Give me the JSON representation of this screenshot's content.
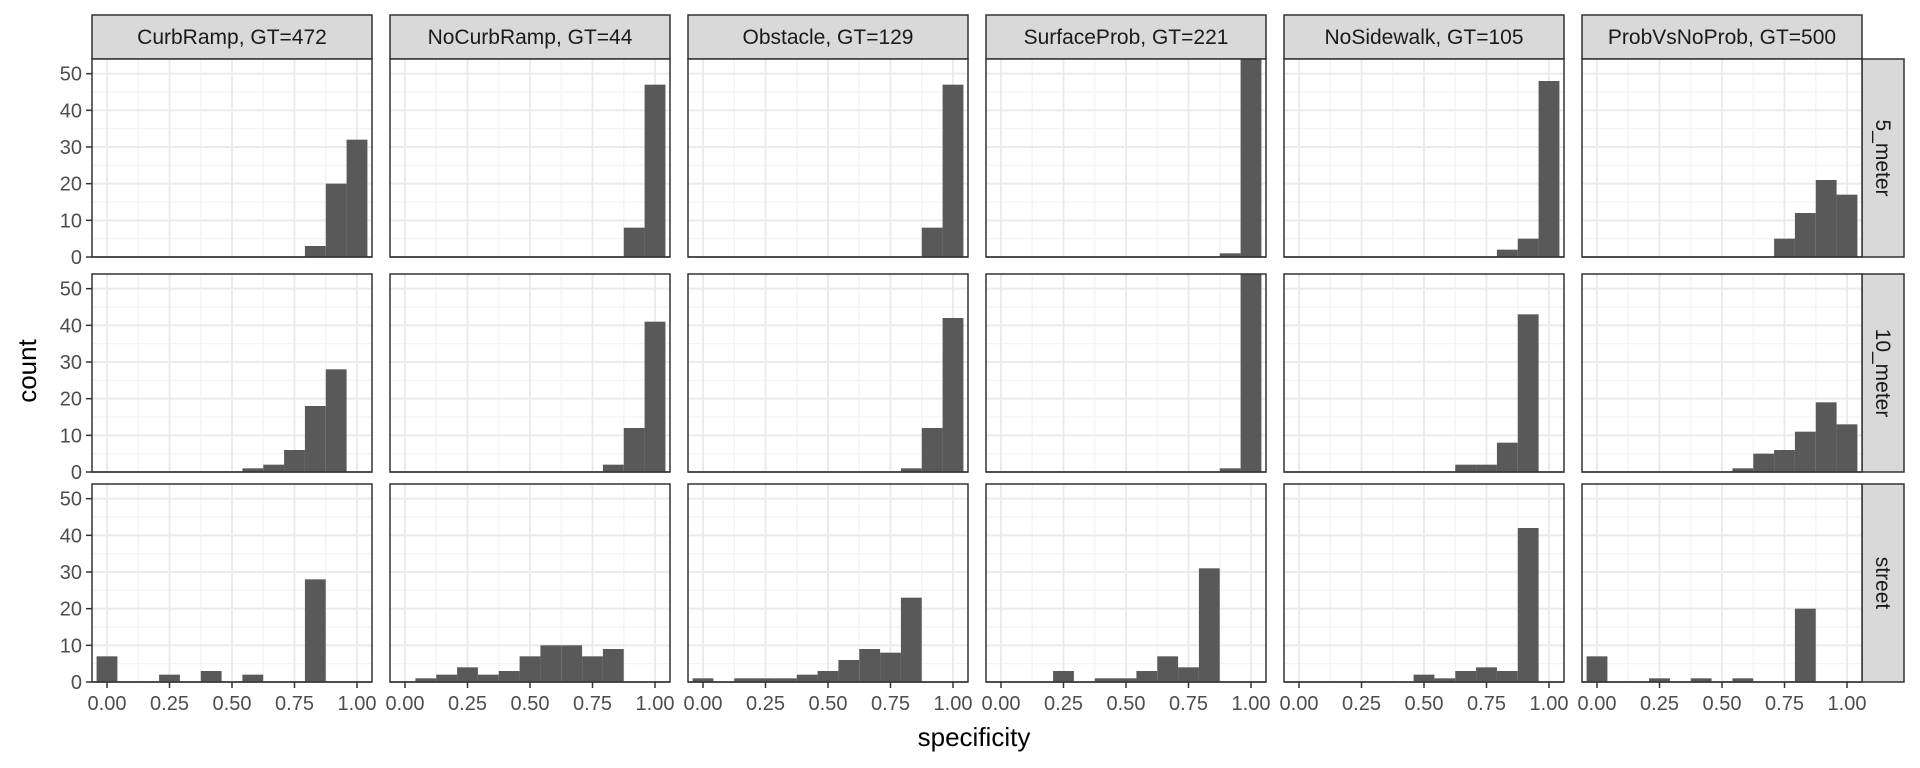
{
  "chart_data": {
    "type": "bar",
    "xlabel": "specificity",
    "ylabel": "count",
    "ylim": [
      0,
      54
    ],
    "xlim": [
      -0.06,
      1.06
    ],
    "bin_width": 0.0833,
    "x_ticks": [
      0.0,
      0.25,
      0.5,
      0.75,
      1.0
    ],
    "x_tick_labels": [
      "0.00",
      "0.25",
      "0.50",
      "0.75",
      "1.00"
    ],
    "y_ticks": [
      0,
      10,
      20,
      30,
      40,
      50
    ],
    "y_tick_labels": [
      "0",
      "10",
      "20",
      "30",
      "40",
      "50"
    ],
    "grid": true,
    "colors": {
      "bar": "#595959",
      "panel_border": "#333333",
      "grid_major": "#ebebeb",
      "grid_minor": "#f3f3f3",
      "strip_fill": "#d9d9d9"
    },
    "bin_centers": [
      0.0,
      0.0833,
      0.1667,
      0.25,
      0.3333,
      0.4167,
      0.5,
      0.5833,
      0.6667,
      0.75,
      0.8333,
      0.9167,
      1.0
    ],
    "columns": [
      "CurbRamp, GT=472",
      "NoCurbRamp, GT=44",
      "Obstacle, GT=129",
      "SurfaceProb, GT=221",
      "NoSidewalk, GT=105",
      "ProbVsNoProb, GT=500"
    ],
    "rows": [
      "5_meter",
      "10_meter",
      "street"
    ],
    "counts": [
      [
        [
          0,
          0,
          0,
          0,
          0,
          0,
          0,
          0,
          0,
          0,
          3,
          20,
          32
        ],
        [
          0,
          0,
          0,
          0,
          0,
          0,
          0,
          0,
          0,
          0,
          0,
          8,
          47
        ],
        [
          0,
          0,
          0,
          0,
          0,
          0,
          0,
          0,
          0,
          0,
          0,
          8,
          47
        ],
        [
          0,
          0,
          0,
          0,
          0,
          0,
          0,
          0,
          0,
          0,
          0,
          1,
          62
        ],
        [
          0,
          0,
          0,
          0,
          0,
          0,
          0,
          0,
          0,
          0,
          2,
          5,
          48
        ],
        [
          0,
          0,
          0,
          0,
          0,
          0,
          0,
          0,
          0,
          5,
          12,
          21,
          17
        ]
      ],
      [
        [
          0,
          0,
          0,
          0,
          0,
          0,
          0,
          1,
          2,
          6,
          18,
          28,
          0
        ],
        [
          0,
          0,
          0,
          0,
          0,
          0,
          0,
          0,
          0,
          0,
          2,
          12,
          41
        ],
        [
          0,
          0,
          0,
          0,
          0,
          0,
          0,
          0,
          0,
          0,
          1,
          12,
          42
        ],
        [
          0,
          0,
          0,
          0,
          0,
          0,
          0,
          0,
          0,
          0,
          0,
          1,
          62
        ],
        [
          0,
          0,
          0,
          0,
          0,
          0,
          0,
          0,
          2,
          2,
          8,
          43,
          0
        ],
        [
          0,
          0,
          0,
          0,
          0,
          0,
          0,
          1,
          5,
          6,
          11,
          19,
          13
        ]
      ],
      [
        [
          7,
          0,
          0,
          2,
          0,
          3,
          0,
          2,
          0,
          0,
          28,
          0,
          0
        ],
        [
          0,
          1,
          2,
          4,
          2,
          3,
          7,
          10,
          10,
          7,
          9,
          0,
          0
        ],
        [
          1,
          0,
          1,
          1,
          1,
          2,
          3,
          6,
          9,
          8,
          23,
          0,
          0
        ],
        [
          0,
          0,
          0,
          3,
          0,
          1,
          1,
          3,
          7,
          4,
          31,
          0,
          0
        ],
        [
          0,
          0,
          0,
          0,
          0,
          0,
          2,
          1,
          3,
          4,
          3,
          42,
          0
        ],
        [
          7,
          0,
          0,
          1,
          0,
          1,
          0,
          1,
          0,
          0,
          20,
          0,
          0
        ]
      ]
    ]
  }
}
